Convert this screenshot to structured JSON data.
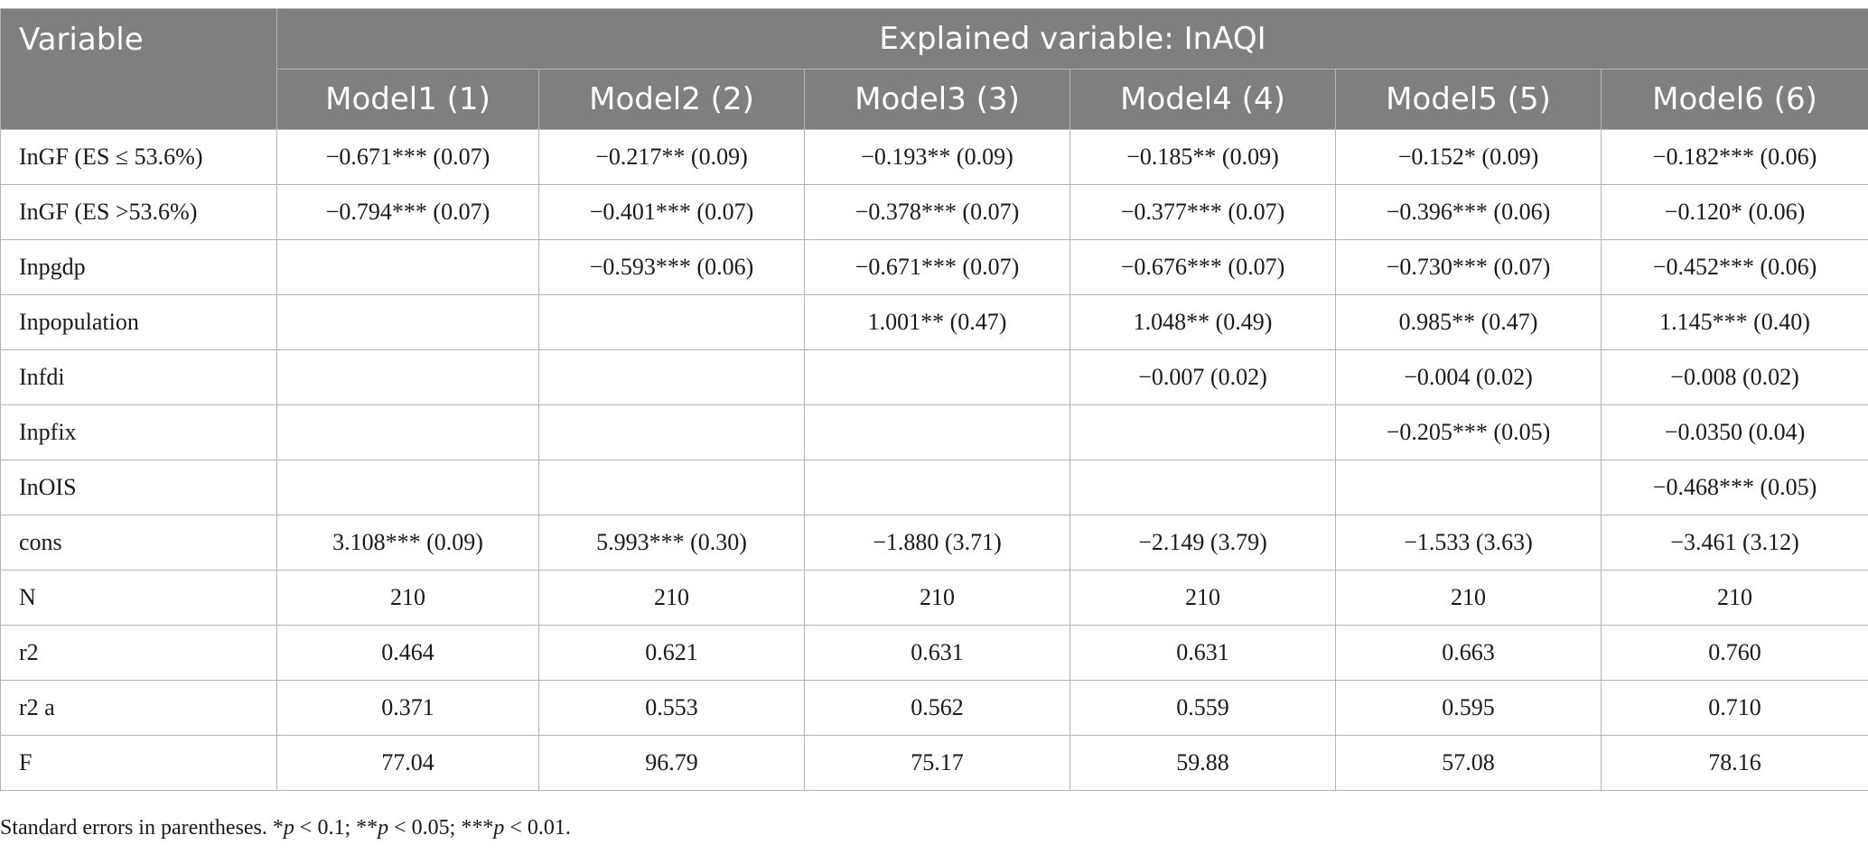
{
  "table": {
    "variable_header": "Variable",
    "span_header": "Explained variable: InAQI",
    "model_headers": [
      "Model1 (1)",
      "Model2 (2)",
      "Model3 (3)",
      "Model4 (4)",
      "Model5 (5)",
      "Model6 (6)"
    ],
    "rows": [
      {
        "label": "InGF (ES ≤ 53.6%)",
        "cells": [
          "−0.671*** (0.07)",
          "−0.217** (0.09)",
          "−0.193** (0.09)",
          "−0.185** (0.09)",
          "−0.152* (0.09)",
          "−0.182*** (0.06)"
        ]
      },
      {
        "label": "InGF (ES >53.6%)",
        "cells": [
          "−0.794*** (0.07)",
          "−0.401*** (0.07)",
          "−0.378*** (0.07)",
          "−0.377*** (0.07)",
          "−0.396*** (0.06)",
          "−0.120* (0.06)"
        ]
      },
      {
        "label": "Inpgdp",
        "cells": [
          "",
          "−0.593*** (0.06)",
          "−0.671*** (0.07)",
          "−0.676*** (0.07)",
          "−0.730*** (0.07)",
          "−0.452*** (0.06)"
        ]
      },
      {
        "label": "Inpopulation",
        "cells": [
          "",
          "",
          "1.001** (0.47)",
          "1.048** (0.49)",
          "0.985** (0.47)",
          "1.145*** (0.40)"
        ]
      },
      {
        "label": "Infdi",
        "cells": [
          "",
          "",
          "",
          "−0.007 (0.02)",
          "−0.004 (0.02)",
          "−0.008 (0.02)"
        ]
      },
      {
        "label": "Inpfix",
        "cells": [
          "",
          "",
          "",
          "",
          "−0.205*** (0.05)",
          "−0.0350 (0.04)"
        ]
      },
      {
        "label": "InOIS",
        "cells": [
          "",
          "",
          "",
          "",
          "",
          "−0.468*** (0.05)"
        ]
      },
      {
        "label": "cons",
        "cells": [
          "3.108*** (0.09)",
          "5.993*** (0.30)",
          "−1.880 (3.71)",
          "−2.149 (3.79)",
          "−1.533 (3.63)",
          "−3.461 (3.12)"
        ]
      },
      {
        "label": "N",
        "cells": [
          "210",
          "210",
          "210",
          "210",
          "210",
          "210"
        ]
      },
      {
        "label": "r2",
        "cells": [
          "0.464",
          "0.621",
          "0.631",
          "0.631",
          "0.663",
          "0.760"
        ]
      },
      {
        "label": "r2 a",
        "cells": [
          "0.371",
          "0.553",
          "0.562",
          "0.559",
          "0.595",
          "0.710"
        ]
      },
      {
        "label": "F",
        "cells": [
          "77.04",
          "96.79",
          "75.17",
          "59.88",
          "57.08",
          "78.16"
        ]
      }
    ]
  },
  "note": {
    "lead": "Standard errors in parentheses. *",
    "p1": "p",
    "t1": " < 0.1; **",
    "p2": "p",
    "t2": " < 0.05; ***",
    "p3": "p",
    "t3": " < 0.01."
  },
  "colors": {
    "header_bg": "#7e7f7e",
    "header_text": "#ffffff",
    "border": "#b4b4b4"
  }
}
